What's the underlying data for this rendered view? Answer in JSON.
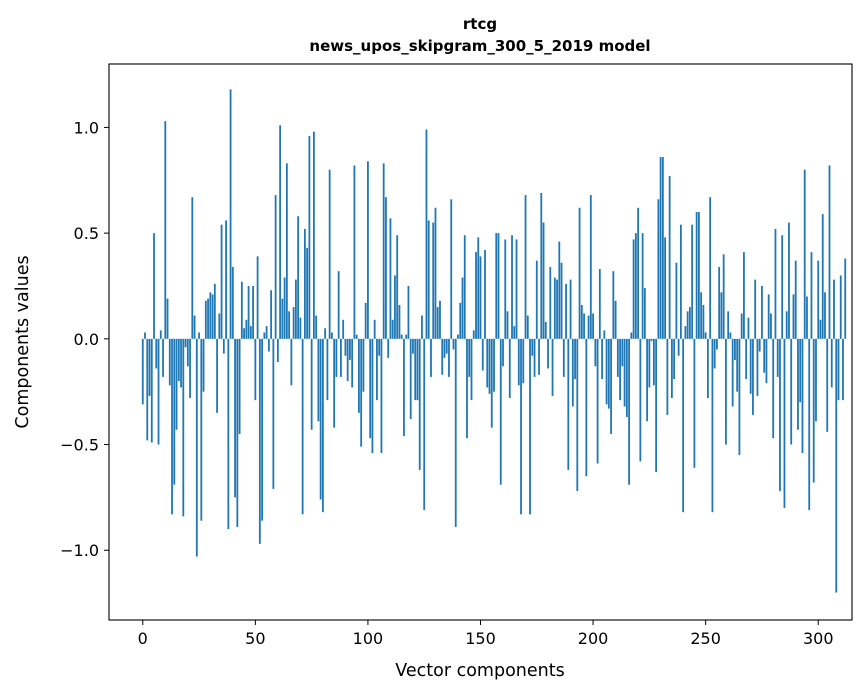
{
  "chart_data": {
    "type": "bar",
    "title": "rtcg",
    "subtitle": "news_upos_skipgram_300_5_2019 model",
    "xlabel": "Vector components",
    "ylabel": "Components values",
    "xlim": [
      -15,
      315
    ],
    "ylim": [
      -1.33,
      1.3
    ],
    "xticks": [
      0,
      50,
      100,
      150,
      200,
      250,
      300
    ],
    "yticks": [
      -1.0,
      -0.5,
      0.0,
      0.5,
      1.0
    ],
    "ytick_labels": [
      "−1.0",
      "−0.5",
      "0.0",
      "0.5",
      "1.0"
    ],
    "bar_color": "#1f77b4",
    "grid": false,
    "x_start": 0,
    "values": [
      -0.31,
      0.03,
      -0.48,
      -0.27,
      -0.49,
      0.5,
      -0.14,
      -0.5,
      0.04,
      -0.18,
      1.03,
      0.19,
      -0.22,
      -0.83,
      -0.69,
      -0.43,
      -0.2,
      -0.23,
      -0.84,
      -0.04,
      -0.13,
      -0.28,
      0.67,
      0.11,
      -1.03,
      0.03,
      -0.86,
      -0.25,
      0.18,
      0.19,
      0.22,
      0.21,
      0.26,
      -0.35,
      0.12,
      0.54,
      -0.07,
      0.56,
      -0.9,
      1.18,
      0.34,
      -0.75,
      -0.89,
      -0.45,
      0.27,
      0.05,
      0.09,
      0.25,
      0.06,
      0.25,
      -0.29,
      0.39,
      -0.97,
      -0.86,
      0.03,
      0.06,
      -0.06,
      0.23,
      -0.71,
      0.68,
      -0.11,
      1.01,
      0.19,
      0.29,
      0.83,
      0.13,
      -0.22,
      0.15,
      0.28,
      0.58,
      0.1,
      -0.83,
      0.52,
      0.43,
      0.96,
      -0.43,
      0.98,
      0.11,
      -0.39,
      -0.76,
      -0.82,
      0.05,
      -0.29,
      0.8,
      0.03,
      -0.42,
      -0.18,
      0.32,
      -0.18,
      0.09,
      -0.08,
      -0.2,
      -0.1,
      -0.23,
      0.82,
      0.02,
      -0.35,
      -0.51,
      -0.25,
      0.17,
      0.84,
      -0.47,
      -0.54,
      0.09,
      -0.29,
      -0.08,
      -0.54,
      0.83,
      0.67,
      -0.09,
      0.57,
      0.09,
      0.3,
      0.49,
      0.16,
      0.02,
      -0.46,
      0.02,
      0.25,
      -0.38,
      -0.07,
      -0.29,
      -0.29,
      -0.62,
      0.11,
      -0.81,
      0.99,
      0.56,
      -0.18,
      0.55,
      0.62,
      0.15,
      0.18,
      -0.17,
      -0.09,
      -0.07,
      -0.18,
      0.66,
      -0.05,
      -0.89,
      0.02,
      0.17,
      0.29,
      0.49,
      -0.47,
      -0.18,
      -0.29,
      0.04,
      0.41,
      0.48,
      0.39,
      -0.15,
      0.42,
      -0.23,
      -0.26,
      -0.42,
      -0.25,
      0.5,
      0.5,
      -0.69,
      -0.13,
      0.47,
      0.13,
      -0.28,
      0.49,
      0.06,
      0.47,
      -0.22,
      -0.83,
      -0.21,
      0.68,
      0.11,
      -0.83,
      -0.08,
      -0.18,
      0.37,
      -0.17,
      0.69,
      0.55,
      0.08,
      -0.14,
      0.34,
      -0.27,
      0.29,
      0.28,
      0.46,
      0.36,
      -0.18,
      0.26,
      -0.62,
      0.28,
      -0.32,
      -0.19,
      -0.72,
      0.62,
      0.16,
      0.12,
      -0.65,
      0.11,
      0.68,
      0.12,
      -0.13,
      -0.59,
      0.33,
      -0.19,
      0.04,
      -0.31,
      -0.33,
      -0.45,
      0.32,
      0.18,
      -0.18,
      -0.29,
      -0.13,
      -0.32,
      -0.37,
      -0.69,
      0.03,
      0.47,
      0.5,
      0.62,
      -0.58,
      0.5,
      0.24,
      -0.39,
      -0.23,
      -0.01,
      -0.22,
      -0.63,
      0.66,
      0.86,
      0.86,
      0.48,
      -0.36,
      0.77,
      -0.28,
      -0.19,
      0.36,
      -0.08,
      0.54,
      -0.82,
      0.06,
      0.13,
      0.15,
      0.54,
      -0.61,
      0.6,
      0.6,
      0.22,
      0.16,
      0.03,
      -0.28,
      0.67,
      -0.82,
      -0.14,
      -0.05,
      0.34,
      0.22,
      0.4,
      -0.5,
      0.13,
      0.03,
      -0.32,
      -0.1,
      -0.25,
      -0.55,
      0.12,
      0.41,
      -0.19,
      0.1,
      -0.26,
      -0.36,
      0.28,
      -0.27,
      -0.06,
      0.25,
      -0.16,
      -0.21,
      0.21,
      0.12,
      -0.47,
      0.52,
      -0.18,
      -0.72,
      0.49,
      -0.8,
      0.13,
      0.55,
      -0.5,
      0.21,
      0.37,
      -0.43,
      -0.3,
      -0.54,
      0.8,
      0.2,
      -0.81,
      0.41,
      -0.68,
      -0.39,
      0.37,
      0.09,
      0.59,
      0.22,
      -0.44,
      0.82,
      -0.23,
      0.28,
      -1.2,
      -0.29,
      0.3,
      -0.29,
      0.38
    ]
  }
}
